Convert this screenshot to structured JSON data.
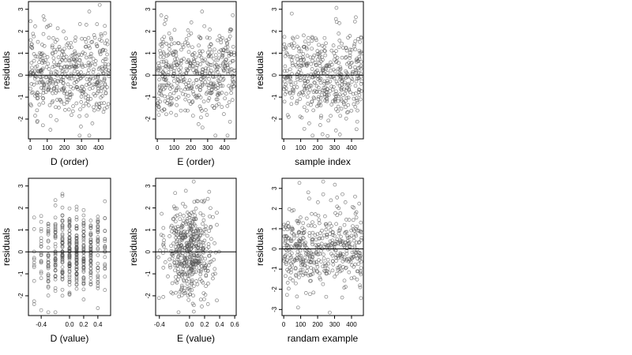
{
  "chart_data": [
    {
      "type": "scatter",
      "xlabel": "D (order)",
      "ylabel": "residuals",
      "xlim": [
        -10,
        470
      ],
      "ylim": [
        -2.9,
        3.35
      ],
      "xticks": [
        0,
        100,
        200,
        300,
        400
      ],
      "yticks": [
        -2,
        -1,
        0,
        1,
        2,
        3
      ],
      "hline": 0,
      "n_points": 460,
      "x_distribution": "uniform 0-460",
      "y_distribution": "approximately normal, mean 0, sd 1",
      "seed": 11
    },
    {
      "type": "scatter",
      "xlabel": "E (order)",
      "ylabel": "residuals",
      "xlim": [
        -10,
        470
      ],
      "ylim": [
        -2.9,
        3.35
      ],
      "xticks": [
        0,
        100,
        200,
        300,
        400
      ],
      "yticks": [
        -2,
        -1,
        0,
        1,
        2,
        3
      ],
      "hline": 0,
      "n_points": 460,
      "x_distribution": "uniform 0-460",
      "y_distribution": "approximately normal, mean 0, sd 1",
      "seed": 23
    },
    {
      "type": "scatter",
      "xlabel": "sample index",
      "ylabel": "residuals",
      "xlim": [
        -10,
        470
      ],
      "ylim": [
        -2.9,
        3.35
      ],
      "xticks": [
        0,
        100,
        200,
        300,
        400
      ],
      "yticks": [
        -2,
        -1,
        0,
        1,
        2,
        3
      ],
      "hline": 0,
      "n_points": 460,
      "x_distribution": "uniform 0-460",
      "y_distribution": "approximately normal, mean 0, sd 1",
      "seed": 37
    },
    {
      "type": "scatter",
      "xlabel": "D (value)",
      "ylabel": "residuals",
      "xlim": [
        -0.58,
        0.58
      ],
      "ylim": [
        -2.9,
        3.35
      ],
      "xticks": [
        -0.4,
        0.0,
        0.2,
        0.4
      ],
      "xtick_labels": [
        "-0.4",
        "0.0",
        "0.2",
        "0.4"
      ],
      "yticks": [
        -2,
        -1,
        0,
        1,
        2,
        3
      ],
      "hline": 0,
      "n_points": 460,
      "x_distribution": "discrete columns -0.5 to 0.5 step 0.1",
      "y_distribution": "approximately normal, mean 0, sd 1",
      "seed": 41
    },
    {
      "type": "scatter",
      "xlabel": "E (value)",
      "ylabel": "residuals",
      "xlim": [
        -0.45,
        0.62
      ],
      "ylim": [
        -2.9,
        3.35
      ],
      "xticks": [
        -0.4,
        0.0,
        0.2,
        0.4,
        0.6
      ],
      "xtick_labels": [
        "-0.4",
        "0.0",
        "0.2",
        "0.4",
        "0.6"
      ],
      "yticks": [
        -2,
        -1,
        0,
        1,
        2,
        3
      ],
      "hline": 0,
      "n_points": 460,
      "x_distribution": "continuous, concentrated near 0, range -0.42 to 0.58",
      "y_distribution": "approximately normal, mean 0, sd 1",
      "seed": 53
    },
    {
      "type": "scatter",
      "xlabel": "randam example",
      "ylabel": "residuals",
      "xlim": [
        -10,
        470
      ],
      "ylim": [
        -3.3,
        3.5
      ],
      "xticks": [
        0,
        100,
        200,
        300,
        400
      ],
      "yticks": [
        -3,
        -2,
        -1,
        0,
        1,
        2,
        3
      ],
      "hline": 0,
      "n_points": 460,
      "x_distribution": "uniform 0-460",
      "y_distribution": "approximately normal, mean 0, sd 1",
      "seed": 67
    }
  ],
  "colors": {
    "point": "#555555",
    "axis": "#000000",
    "hline": "#000000"
  }
}
